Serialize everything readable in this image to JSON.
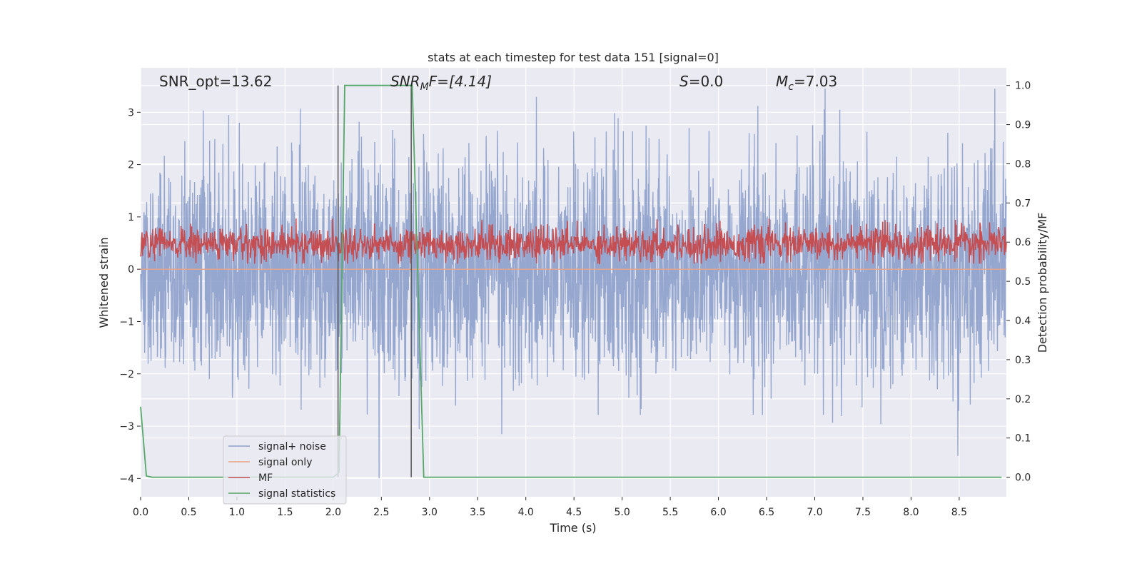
{
  "chart_data": {
    "type": "line",
    "title": "stats at each timestep for test data 151 [signal=0]",
    "xlabel": "Time (s)",
    "ylabel_left": "Whitened strain",
    "ylabel_right": "Detection probability/MF",
    "xlim": [
      0.0,
      8.99
    ],
    "ylim_left": [
      -4.35,
      3.85
    ],
    "ylim_right": [
      -0.05,
      1.045
    ],
    "x_ticks": [
      "0.0",
      "0.5",
      "1.0",
      "1.5",
      "2.0",
      "2.5",
      "3.0",
      "3.5",
      "4.0",
      "4.5",
      "5.0",
      "5.5",
      "6.0",
      "6.5",
      "7.0",
      "7.5",
      "8.0",
      "8.5"
    ],
    "y_left_ticks": [
      "3",
      "2",
      "1",
      "0",
      "−1",
      "−2",
      "−3",
      "−4"
    ],
    "y_right_ticks": [
      "1.0",
      "0.9",
      "0.8",
      "0.7",
      "0.6",
      "0.5",
      "0.4",
      "0.3",
      "0.2",
      "0.1",
      "0.0"
    ],
    "grid": true,
    "annotations": {
      "snr_opt": "SNR_opt=13.62",
      "snr_mf_prefix": "SNR",
      "snr_mf_sub": "M",
      "snr_mf_rest": "F=[4.14]",
      "s_italic": "S",
      "s_rest": "=0.0",
      "mc_italic": "M",
      "mc_sub": "c",
      "mc_rest": "=7.03"
    },
    "vertical_lines": [
      2.05,
      2.81
    ],
    "legend": {
      "placement": "lower left",
      "entries": [
        "signal+ noise",
        "signal only",
        "MF",
        "signal statistics"
      ]
    },
    "series": [
      {
        "name": "signal+ noise",
        "axis": "left",
        "color": "#8da0cb",
        "kind": "noise",
        "mean": 0.0,
        "std": 1.0,
        "approx_range": [
          -4.0,
          3.45
        ]
      },
      {
        "name": "signal only",
        "axis": "left",
        "color": "#e8a48a",
        "kind": "flat",
        "value": 0.0
      },
      {
        "name": "MF",
        "axis": "right",
        "color": "#c44e52",
        "kind": "noise",
        "mean": 0.595,
        "range": [
          0.545,
          0.66
        ]
      },
      {
        "name": "signal statistics",
        "axis": "right",
        "color": "#55a868",
        "x": [
          0.0,
          0.06,
          0.12,
          2.0,
          2.06,
          2.12,
          2.82,
          2.94,
          8.94
        ],
        "y": [
          0.18,
          0.003,
          0.0,
          0.0,
          0.012,
          1.0,
          1.0,
          0.0,
          0.0
        ]
      }
    ]
  }
}
